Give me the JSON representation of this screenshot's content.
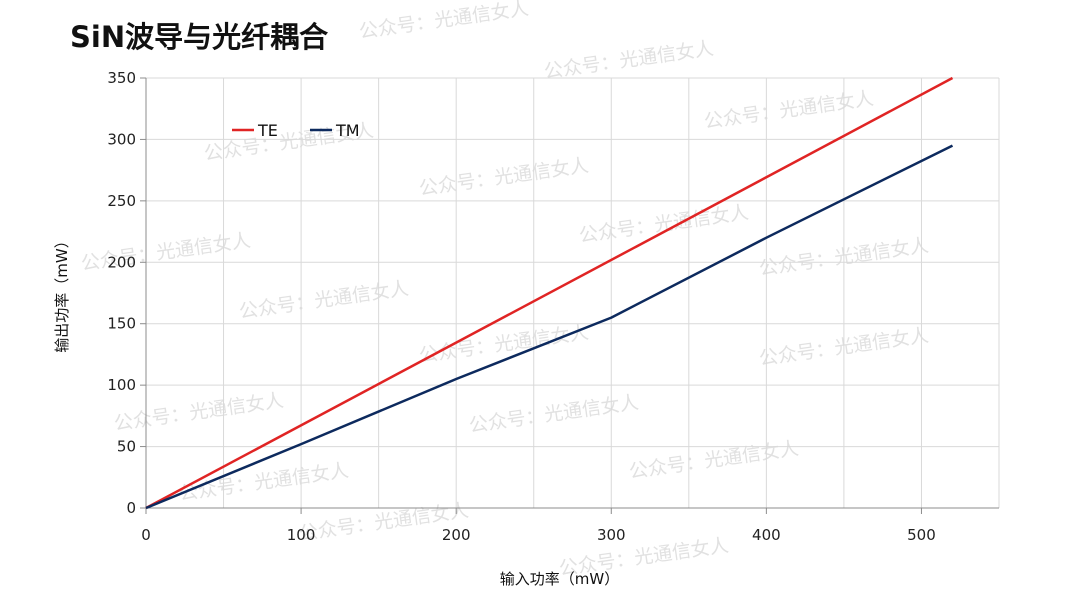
{
  "title": "SiN波导与光纤耦合",
  "watermark": "公众号：光通信女人",
  "chart_data": {
    "type": "line",
    "xlabel": "输入功率（mW）",
    "ylabel": "输出功率（mW）",
    "xlim": [
      0,
      550
    ],
    "ylim": [
      0,
      350
    ],
    "xticks": [
      "0",
      "100",
      "200",
      "300",
      "400",
      "500"
    ],
    "yticks": [
      "0",
      "50",
      "100",
      "150",
      "200",
      "250",
      "300",
      "350"
    ],
    "grid": true,
    "legend_position": "top-left",
    "series": [
      {
        "name": "TE",
        "color": "#e02424",
        "x": [
          0,
          520
        ],
        "y": [
          0,
          350
        ]
      },
      {
        "name": "TM",
        "color": "#0d2a5e",
        "x": [
          0,
          100,
          200,
          300,
          400,
          520
        ],
        "y": [
          0,
          52,
          105,
          155,
          220,
          295
        ]
      }
    ]
  }
}
